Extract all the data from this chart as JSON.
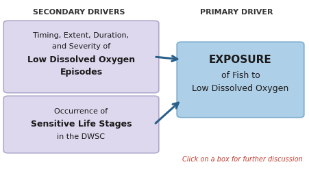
{
  "background_color": "#ffffff",
  "title_secondary": "SECONDARY DRIVERS",
  "title_primary": "PRIMARY DRIVER",
  "box1_lines": [
    "Timing, Extent, Duration,",
    "and Severity of",
    "Low Dissolved Oxygen",
    "Episodes"
  ],
  "box1_bold": [
    false,
    false,
    true,
    true
  ],
  "box2_lines": [
    "Occurrence of",
    "Sensitive Life Stages",
    "in the DWSC"
  ],
  "box2_bold": [
    false,
    true,
    false
  ],
  "box3_lines": [
    "EXPOSURE",
    "of Fish to",
    "Low Dissolved Oxygen"
  ],
  "box3_bold": [
    true,
    false,
    false
  ],
  "box1_facecolor": "#ddd8ee",
  "box1_edgecolor": "#b0a8cc",
  "box2_facecolor": "#ddd8ee",
  "box2_edgecolor": "#b0a8cc",
  "box3_facecolor": "#aecfe8",
  "box3_edgecolor": "#7aabcc",
  "arrow_color": "#2a5f8a",
  "note_text": "Click on a box for further discussion",
  "note_color": "#c0392b",
  "fig_w": 4.52,
  "fig_h": 2.5,
  "dpi": 100
}
